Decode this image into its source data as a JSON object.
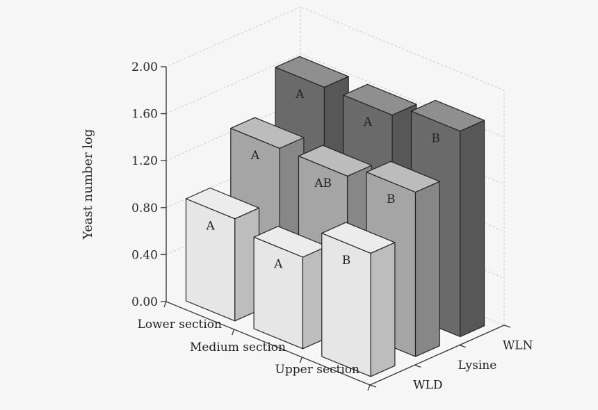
{
  "chart_data": {
    "type": "bar",
    "subtype": "3d-grouped",
    "title": "",
    "ylabel": "Yeast number log",
    "ylim": [
      0,
      2.0
    ],
    "yticks": [
      "0.00",
      "0.40",
      "0.80",
      "1.20",
      "1.60",
      "2.00"
    ],
    "categories": [
      "Lower section",
      "Medium section",
      "Upper section"
    ],
    "depth_categories": [
      "WLD",
      "Lysine",
      "WLN"
    ],
    "grid": true,
    "series": [
      {
        "name": "WLD",
        "color": "#e6e6e6",
        "values": [
          0.87,
          0.78,
          1.05
        ],
        "labels": [
          "A",
          "A",
          "B"
        ]
      },
      {
        "name": "Lysine",
        "color": "#a5a5a5",
        "values": [
          1.3,
          1.3,
          1.4
        ],
        "labels": [
          "A",
          "AB",
          "B"
        ]
      },
      {
        "name": "WLN",
        "color": "#6a6a6a",
        "values": [
          1.65,
          1.65,
          1.75
        ],
        "labels": [
          "A",
          "A",
          "B"
        ]
      }
    ]
  }
}
